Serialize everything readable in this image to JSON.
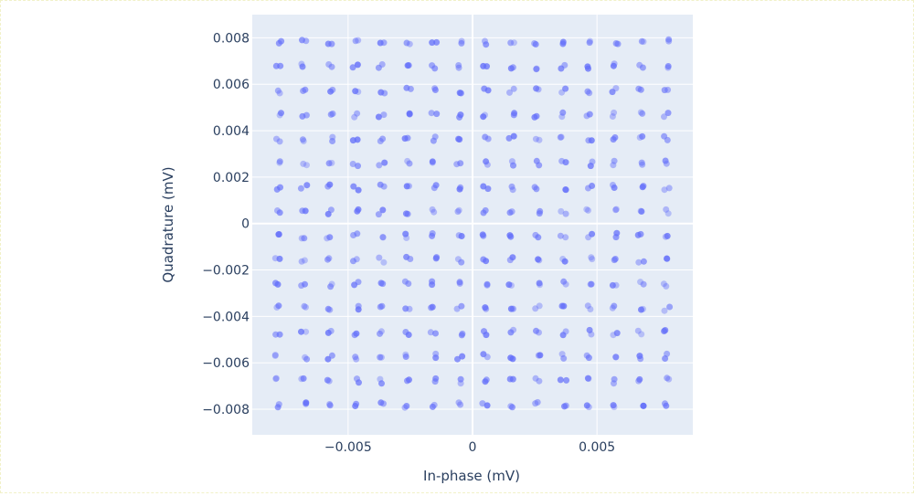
{
  "chart_data": {
    "type": "scatter",
    "title": "",
    "xlabel": "In-phase (mV)",
    "ylabel": "Quadrature (mV)",
    "xlim": [
      -0.00885,
      0.00885
    ],
    "ylim": [
      -0.0091,
      0.009
    ],
    "xticks": [
      -0.005,
      0,
      0.005
    ],
    "xtick_labels": [
      "−0.005",
      "0",
      "0.005"
    ],
    "yticks": [
      -0.008,
      -0.006,
      -0.004,
      -0.002,
      0,
      0.002,
      0.004,
      0.006,
      0.008
    ],
    "ytick_labels": [
      "−0.008",
      "−0.006",
      "−0.004",
      "−0.002",
      "0",
      "0.002",
      "0.004",
      "0.006",
      "0.008"
    ],
    "grid": true,
    "legend": "none",
    "colors": {
      "marker": "#636efa",
      "plot_bg": "#e5ecf6",
      "grid": "#ffffff",
      "text": "#2a3f5f"
    },
    "constellation_levels": [
      -0.00781,
      -0.00677,
      -0.00573,
      -0.00469,
      -0.00365,
      -0.0026,
      -0.00156,
      -0.00052,
      0.00052,
      0.00156,
      0.0026,
      0.00365,
      0.00469,
      0.00573,
      0.00677,
      0.00781
    ],
    "points_per_symbol": 2,
    "series": [
      {
        "x": [
          -0.00781,
          -0.00677,
          -0.00573,
          -0.00469,
          -0.00365,
          -0.0026,
          -0.00156,
          -0.00052,
          0.00052,
          0.00156,
          0.0026,
          0.00365,
          0.00469,
          0.00573,
          0.00677,
          0.00781,
          -0.00781,
          -0.00677,
          -0.00573,
          -0.00469,
          -0.00365,
          -0.0026,
          -0.00156,
          -0.00052,
          0.00052,
          0.00156,
          0.0026,
          0.00365,
          0.00469,
          0.00573,
          0.00677,
          0.00781,
          -0.00781,
          -0.00677,
          -0.00573,
          -0.00469,
          -0.00365,
          -0.0026,
          -0.00156,
          -0.00052,
          0.00052,
          0.00156,
          0.0026,
          0.00365,
          0.00469,
          0.00573,
          0.00677,
          0.00781,
          -0.00781,
          -0.00677,
          -0.00573,
          -0.00469,
          -0.00365,
          -0.0026,
          -0.00156,
          -0.00052,
          0.00052,
          0.00156,
          0.0026,
          0.00365,
          0.00469,
          0.00573,
          0.00677,
          0.00781,
          -0.00781,
          -0.00677,
          -0.00573,
          -0.00469,
          -0.00365,
          -0.0026,
          -0.00156,
          -0.00052,
          0.00052,
          0.00156,
          0.0026,
          0.00365,
          0.00469,
          0.00573,
          0.00677,
          0.00781,
          -0.00781,
          -0.00677,
          -0.00573,
          -0.00469,
          -0.00365,
          -0.0026,
          -0.00156,
          -0.00052,
          0.00052,
          0.00156,
          0.0026,
          0.00365,
          0.00469,
          0.00573,
          0.00677,
          0.00781,
          -0.00781,
          -0.00677,
          -0.00573,
          -0.00469,
          -0.00365,
          -0.0026,
          -0.00156,
          -0.00052,
          0.00052,
          0.00156,
          0.0026,
          0.00365,
          0.00469,
          0.00573,
          0.00677,
          0.00781,
          -0.00781,
          -0.00677,
          -0.00573,
          -0.00469,
          -0.00365,
          -0.0026,
          -0.00156,
          -0.00052,
          0.00052,
          0.00156,
          0.0026,
          0.00365,
          0.00469,
          0.00573,
          0.00677,
          0.00781,
          -0.00781,
          -0.00677,
          -0.00573,
          -0.00469,
          -0.00365,
          -0.0026,
          -0.00156,
          -0.00052,
          0.00052,
          0.00156,
          0.0026,
          0.00365,
          0.00469,
          0.00573,
          0.00677,
          0.00781,
          -0.00781,
          -0.00677,
          -0.00573,
          -0.00469,
          -0.00365,
          -0.0026,
          -0.00156,
          -0.00052,
          0.00052,
          0.00156,
          0.0026,
          0.00365,
          0.00469,
          0.00573,
          0.00677,
          0.00781,
          -0.00781,
          -0.00677,
          -0.00573,
          -0.00469,
          -0.00365,
          -0.0026,
          -0.00156,
          -0.00052,
          0.00052,
          0.00156,
          0.0026,
          0.00365,
          0.00469,
          0.00573,
          0.00677,
          0.00781,
          -0.00781,
          -0.00677,
          -0.00573,
          -0.00469,
          -0.00365,
          -0.0026,
          -0.00156,
          -0.00052,
          0.00052,
          0.00156,
          0.0026,
          0.00365,
          0.00469,
          0.00573,
          0.00677,
          0.00781,
          -0.00781,
          -0.00677,
          -0.00573,
          -0.00469,
          -0.00365,
          -0.0026,
          -0.00156,
          -0.00052,
          0.00052,
          0.00156,
          0.0026,
          0.00365,
          0.00469,
          0.00573,
          0.00677,
          0.00781,
          -0.00781,
          -0.00677,
          -0.00573,
          -0.00469,
          -0.00365,
          -0.0026,
          -0.00156,
          -0.00052,
          0.00052,
          0.00156,
          0.0026,
          0.00365,
          0.00469,
          0.00573,
          0.00677,
          0.00781,
          -0.00781,
          -0.00677,
          -0.00573,
          -0.00469,
          -0.00365,
          -0.0026,
          -0.00156,
          -0.00052,
          0.00052,
          0.00156,
          0.0026,
          0.00365,
          0.00469,
          0.00573,
          0.00677,
          0.00781,
          -0.00781,
          -0.00677,
          -0.00573,
          -0.00469,
          -0.00365,
          -0.0026,
          -0.00156,
          -0.00052,
          0.00052,
          0.00156,
          0.0026,
          0.00365,
          0.00469,
          0.00573,
          0.00677,
          0.00781
        ],
        "y": [
          0.00781,
          0.00781,
          0.00781,
          0.00781,
          0.00781,
          0.00781,
          0.00781,
          0.00781,
          0.00781,
          0.00781,
          0.00781,
          0.00781,
          0.00781,
          0.00781,
          0.00781,
          0.00781,
          0.00677,
          0.00677,
          0.00677,
          0.00677,
          0.00677,
          0.00677,
          0.00677,
          0.00677,
          0.00677,
          0.00677,
          0.00677,
          0.00677,
          0.00677,
          0.00677,
          0.00677,
          0.00677,
          0.00573,
          0.00573,
          0.00573,
          0.00573,
          0.00573,
          0.00573,
          0.00573,
          0.00573,
          0.00573,
          0.00573,
          0.00573,
          0.00573,
          0.00573,
          0.00573,
          0.00573,
          0.00573,
          0.00469,
          0.00469,
          0.00469,
          0.00469,
          0.00469,
          0.00469,
          0.00469,
          0.00469,
          0.00469,
          0.00469,
          0.00469,
          0.00469,
          0.00469,
          0.00469,
          0.00469,
          0.00469,
          0.00365,
          0.00365,
          0.00365,
          0.00365,
          0.00365,
          0.00365,
          0.00365,
          0.00365,
          0.00365,
          0.00365,
          0.00365,
          0.00365,
          0.00365,
          0.00365,
          0.00365,
          0.00365,
          0.0026,
          0.0026,
          0.0026,
          0.0026,
          0.0026,
          0.0026,
          0.0026,
          0.0026,
          0.0026,
          0.0026,
          0.0026,
          0.0026,
          0.0026,
          0.0026,
          0.0026,
          0.0026,
          0.00156,
          0.00156,
          0.00156,
          0.00156,
          0.00156,
          0.00156,
          0.00156,
          0.00156,
          0.00156,
          0.00156,
          0.00156,
          0.00156,
          0.00156,
          0.00156,
          0.00156,
          0.00156,
          0.00052,
          0.00052,
          0.00052,
          0.00052,
          0.00052,
          0.00052,
          0.00052,
          0.00052,
          0.00052,
          0.00052,
          0.00052,
          0.00052,
          0.00052,
          0.00052,
          0.00052,
          0.00052,
          -0.00052,
          -0.00052,
          -0.00052,
          -0.00052,
          -0.00052,
          -0.00052,
          -0.00052,
          -0.00052,
          -0.00052,
          -0.00052,
          -0.00052,
          -0.00052,
          -0.00052,
          -0.00052,
          -0.00052,
          -0.00052,
          -0.00156,
          -0.00156,
          -0.00156,
          -0.00156,
          -0.00156,
          -0.00156,
          -0.00156,
          -0.00156,
          -0.00156,
          -0.00156,
          -0.00156,
          -0.00156,
          -0.00156,
          -0.00156,
          -0.00156,
          -0.00156,
          -0.0026,
          -0.0026,
          -0.0026,
          -0.0026,
          -0.0026,
          -0.0026,
          -0.0026,
          -0.0026,
          -0.0026,
          -0.0026,
          -0.0026,
          -0.0026,
          -0.0026,
          -0.0026,
          -0.0026,
          -0.0026,
          -0.00365,
          -0.00365,
          -0.00365,
          -0.00365,
          -0.00365,
          -0.00365,
          -0.00365,
          -0.00365,
          -0.00365,
          -0.00365,
          -0.00365,
          -0.00365,
          -0.00365,
          -0.00365,
          -0.00365,
          -0.00365,
          -0.00469,
          -0.00469,
          -0.00469,
          -0.00469,
          -0.00469,
          -0.00469,
          -0.00469,
          -0.00469,
          -0.00469,
          -0.00469,
          -0.00469,
          -0.00469,
          -0.00469,
          -0.00469,
          -0.00469,
          -0.00469,
          -0.00573,
          -0.00573,
          -0.00573,
          -0.00573,
          -0.00573,
          -0.00573,
          -0.00573,
          -0.00573,
          -0.00573,
          -0.00573,
          -0.00573,
          -0.00573,
          -0.00573,
          -0.00573,
          -0.00573,
          -0.00573,
          -0.00677,
          -0.00677,
          -0.00677,
          -0.00677,
          -0.00677,
          -0.00677,
          -0.00677,
          -0.00677,
          -0.00677,
          -0.00677,
          -0.00677,
          -0.00677,
          -0.00677,
          -0.00677,
          -0.00677,
          -0.00677,
          -0.00781,
          -0.00781,
          -0.00781,
          -0.00781,
          -0.00781,
          -0.00781,
          -0.00781,
          -0.00781,
          -0.00781,
          -0.00781,
          -0.00781,
          -0.00781,
          -0.00781,
          -0.00781,
          -0.00781,
          -0.00781
        ]
      }
    ]
  }
}
